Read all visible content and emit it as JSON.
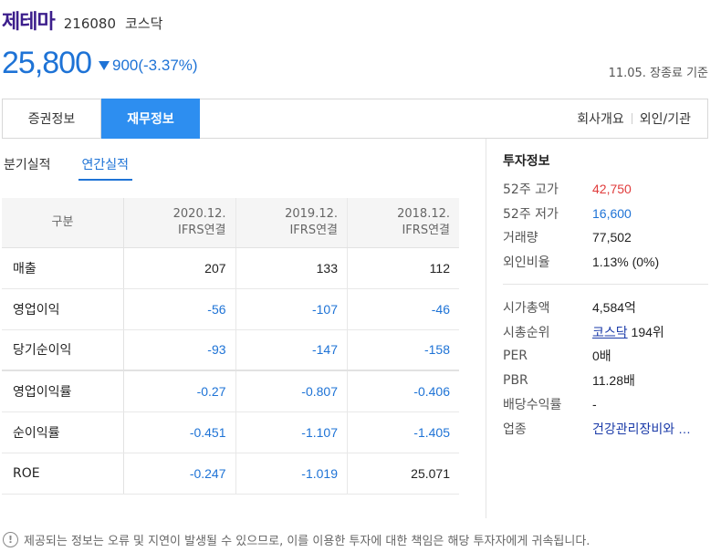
{
  "header": {
    "name": "제테마",
    "code": "216080",
    "market": "코스닥",
    "price": "25,800",
    "change": "900(-3.37%)",
    "as_of": "11.05. 장종료 기준"
  },
  "tabs": {
    "items": [
      "증권정보",
      "재무정보"
    ],
    "active": "재무정보",
    "right_links": [
      "회사개요",
      "외인/기관"
    ]
  },
  "subtabs": {
    "items": [
      "분기실적",
      "연간실적"
    ],
    "active": "연간실적"
  },
  "table": {
    "header_label": "구분",
    "columns": [
      {
        "period": "2020.12.",
        "basis": "IFRS연결"
      },
      {
        "period": "2019.12.",
        "basis": "IFRS연결"
      },
      {
        "period": "2018.12.",
        "basis": "IFRS연결"
      }
    ],
    "rows": [
      {
        "label": "매출",
        "values": [
          "207",
          "133",
          "112"
        ]
      },
      {
        "label": "영업이익",
        "values": [
          "-56",
          "-107",
          "-46"
        ]
      },
      {
        "label": "당기순이익",
        "values": [
          "-93",
          "-147",
          "-158"
        ]
      },
      {
        "label": "영업이익률",
        "values": [
          "-0.27",
          "-0.807",
          "-0.406"
        ]
      },
      {
        "label": "순이익률",
        "values": [
          "-0.451",
          "-1.107",
          "-1.405"
        ]
      },
      {
        "label": "ROE",
        "values": [
          "-0.247",
          "-1.019",
          "25.071"
        ]
      }
    ]
  },
  "investment": {
    "title": "투자정보",
    "group1": [
      {
        "key": "52주 고가",
        "value": "42,750"
      },
      {
        "key": "52주 저가",
        "value": "16,600"
      },
      {
        "key": "거래량",
        "value": "77,502"
      },
      {
        "key": "외인비율",
        "value": "1.13% (0%)"
      }
    ],
    "group2": [
      {
        "key": "시가총액",
        "value": "4,584억"
      },
      {
        "key": "시총순위",
        "value_link": "코스닥",
        "value_rest": " 194위"
      },
      {
        "key": "PER",
        "value": "0배"
      },
      {
        "key": "PBR",
        "value": "11.28배"
      },
      {
        "key": "배당수익률",
        "value": "-"
      },
      {
        "key": "업종",
        "value": "건강관리장비와 …"
      }
    ]
  },
  "footer": {
    "icon": "exclamation-circle-icon",
    "text": "제공되는 정보는 오류 및 지연이 발생될 수 있으므로, 이를 이용한 투자에 대한 책임은 해당 투자자에게 귀속됩니다."
  },
  "colors": {
    "name": "#3c1e8c",
    "down": "#1e73d6",
    "active_tab": "#2d8ef0",
    "high": "#e03c3c",
    "low": "#1e73d6"
  }
}
